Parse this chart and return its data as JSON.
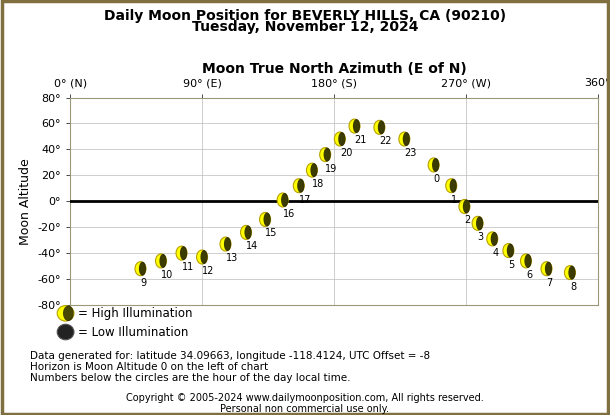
{
  "title1": "Daily Moon Position for BEVERLY HILLS, CA (90210)",
  "title2": "Tuesday, November 12, 2024",
  "xlabel": "Moon True North Azimuth (E of N)",
  "ylabel": "Moon Altitude",
  "xlim": [
    0,
    360
  ],
  "ylim": [
    -80,
    80
  ],
  "xticks": [
    0,
    90,
    180,
    270,
    360
  ],
  "xtick_labels": [
    "0° (N)",
    "90° (E)",
    "180° (S)",
    "270° (W)",
    "360°"
  ],
  "yticks": [
    -80,
    -60,
    -40,
    -20,
    0,
    20,
    40,
    60,
    80
  ],
  "ytick_labels": [
    "-80°",
    "-60°",
    "-40°",
    "-20°",
    "0°",
    "20°",
    "40°",
    "60°",
    "80°"
  ],
  "moon_data": [
    {
      "hour": 9,
      "azimuth": 48,
      "altitude": -52,
      "high": true
    },
    {
      "hour": 10,
      "azimuth": 62,
      "altitude": -46,
      "high": true
    },
    {
      "hour": 11,
      "azimuth": 76,
      "altitude": -40,
      "high": true
    },
    {
      "hour": 12,
      "azimuth": 90,
      "altitude": -43,
      "high": true
    },
    {
      "hour": 13,
      "azimuth": 106,
      "altitude": -33,
      "high": true
    },
    {
      "hour": 14,
      "azimuth": 120,
      "altitude": -24,
      "high": true
    },
    {
      "hour": 15,
      "azimuth": 133,
      "altitude": -14,
      "high": true
    },
    {
      "hour": 16,
      "azimuth": 145,
      "altitude": 1,
      "high": true
    },
    {
      "hour": 17,
      "azimuth": 156,
      "altitude": 12,
      "high": true
    },
    {
      "hour": 18,
      "azimuth": 165,
      "altitude": 24,
      "high": true
    },
    {
      "hour": 19,
      "azimuth": 174,
      "altitude": 36,
      "high": true
    },
    {
      "hour": 20,
      "azimuth": 184,
      "altitude": 48,
      "high": true
    },
    {
      "hour": 21,
      "azimuth": 194,
      "altitude": 58,
      "high": true
    },
    {
      "hour": 22,
      "azimuth": 211,
      "altitude": 57,
      "high": true
    },
    {
      "hour": 23,
      "azimuth": 228,
      "altitude": 48,
      "high": true
    },
    {
      "hour": 0,
      "azimuth": 248,
      "altitude": 28,
      "high": true
    },
    {
      "hour": 1,
      "azimuth": 260,
      "altitude": 12,
      "high": true
    },
    {
      "hour": 2,
      "azimuth": 269,
      "altitude": -4,
      "high": true
    },
    {
      "hour": 3,
      "azimuth": 278,
      "altitude": -17,
      "high": true
    },
    {
      "hour": 4,
      "azimuth": 288,
      "altitude": -29,
      "high": true
    },
    {
      "hour": 5,
      "azimuth": 299,
      "altitude": -38,
      "high": true
    },
    {
      "hour": 6,
      "azimuth": 311,
      "altitude": -46,
      "high": true
    },
    {
      "hour": 7,
      "azimuth": 325,
      "altitude": -52,
      "high": true
    },
    {
      "hour": 8,
      "azimuth": 341,
      "altitude": -55,
      "high": true
    }
  ],
  "high_color": "#FFFF00",
  "high_edge_color": "#B8A000",
  "low_color": "#222222",
  "low_edge_color": "#444444",
  "grid_color": "#BBBBBB",
  "horizon_color": "#000000",
  "bg_color": "#FFFFFF",
  "border_color": "#807040",
  "footer_text1": "Data generated for: latitude 34.09663, longitude -118.4124, UTC Offset = -8",
  "footer_text2": "Horizon is Moon Altitude 0 on the left of chart",
  "footer_text3": "Numbers below the circles are the hour of the day local time.",
  "copyright1": "Copyright © 2005-2024 www.dailymoonposition.com, All rights reserved.",
  "copyright2": "Personal non commercial use only."
}
